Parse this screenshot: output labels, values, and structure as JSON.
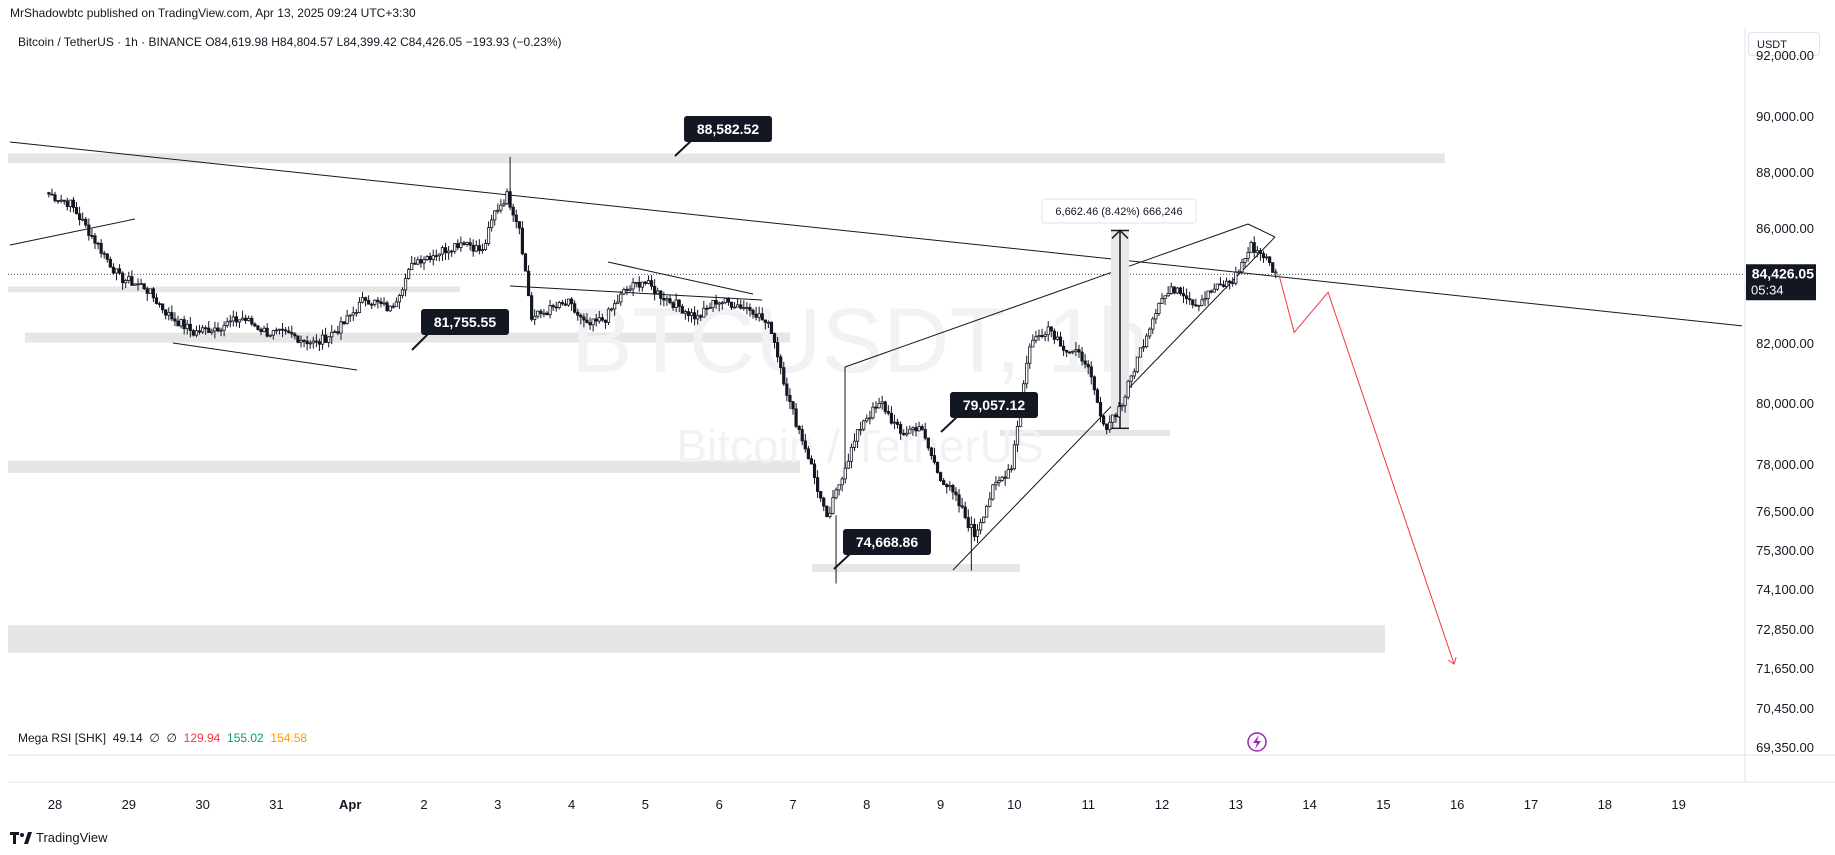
{
  "publisher": "MrShadowbtc published on TradingView.com, Apr 13, 2025 09:24 UTC+3:30",
  "header": {
    "symbol": "Bitcoin / TetherUS · 1h · BINANCE",
    "open": "O84,619.98",
    "high": "H84,804.57",
    "low": "L84,399.42",
    "close": "C84,426.05",
    "change": "−193.93 (−0.23%)"
  },
  "currency_button": "USDT",
  "watermark": {
    "symbol": "BTCUSDT, 1h",
    "name": "Bitcoin / TetherUS"
  },
  "indicator": {
    "name": "Mega RSI [SHK]",
    "v1": "49.14",
    "v2": "∅",
    "v3": "∅",
    "v4": "129.94",
    "v5": "155.02",
    "v6": "154.58",
    "colors": {
      "v4": "#f23645",
      "v5": "#089981",
      "v6": "#ff9800"
    }
  },
  "footer": {
    "brand": "TradingView",
    "icon": "tradingview-logo-icon"
  },
  "colors": {
    "bull": "#131722",
    "projection": "#f23645",
    "zone": "#e6e6e6",
    "last_price_bg": "#131722"
  },
  "chart_data": {
    "type": "candlestick",
    "interval": "1h",
    "x_ticks": [
      "28",
      "29",
      "30",
      "31",
      "Apr",
      "2",
      "3",
      "4",
      "5",
      "6",
      "7",
      "8",
      "9",
      "10",
      "11",
      "12",
      "13",
      "14",
      "15",
      "16",
      "17",
      "18",
      "19"
    ],
    "y_ticks": [
      "92,000.00",
      "90,000.00",
      "88,000.00",
      "86,000.00",
      "82,000.00",
      "80,000.00",
      "78,000.00",
      "76,500.00",
      "75,300.00",
      "74,100.00",
      "72,850.00",
      "71,650.00",
      "70,450.00",
      "69,350.00"
    ],
    "last_price": {
      "value": "84,426.05",
      "countdown": "05:34"
    },
    "price_labels": [
      "88,582.52",
      "81,755.55",
      "79,057.12",
      "74,668.86"
    ],
    "measure_label": "6,662.46 (8.42%) 666,246",
    "close_path": [
      [
        "Mar 27 22:00",
        87300
      ],
      [
        "Mar 28 06:00",
        86900
      ],
      [
        "Mar 28 14:00",
        85600
      ],
      [
        "Mar 28 22:00",
        84300
      ],
      [
        "Mar 29 06:00",
        84000
      ],
      [
        "Mar 29 14:00",
        83000
      ],
      [
        "Mar 29 22:00",
        82400
      ],
      [
        "Mar 30 06:00",
        82600
      ],
      [
        "Mar 30 14:00",
        82900
      ],
      [
        "Mar 30 22:00",
        82400
      ],
      [
        "Mar 31 06:00",
        82300
      ],
      [
        "Mar 31 14:00",
        82000
      ],
      [
        "Mar 31 22:00",
        82600
      ],
      [
        "Apr 1 06:00",
        83600
      ],
      [
        "Apr 1 14:00",
        83200
      ],
      [
        "Apr 1 22:00",
        84900
      ],
      [
        "Apr 2 06:00",
        85200
      ],
      [
        "Apr 2 14:00",
        85600
      ],
      [
        "Apr 2 20:00",
        85200
      ],
      [
        "Apr 3 00:00",
        86600
      ],
      [
        "Apr 3 04:00",
        87200
      ],
      [
        "Apr 3 08:00",
        86100
      ],
      [
        "Apr 3 12:00",
        82900
      ],
      [
        "Apr 3 18:00",
        83200
      ],
      [
        "Apr 4 00:00",
        83400
      ],
      [
        "Apr 4 06:00",
        82600
      ],
      [
        "Apr 4 12:00",
        82900
      ],
      [
        "Apr 4 18:00",
        83800
      ],
      [
        "Apr 5 00:00",
        84200
      ],
      [
        "Apr 5 06:00",
        83700
      ],
      [
        "Apr 5 12:00",
        83300
      ],
      [
        "Apr 5 18:00",
        82900
      ],
      [
        "Apr 6 00:00",
        83500
      ],
      [
        "Apr 6 06:00",
        83400
      ],
      [
        "Apr 6 12:00",
        83200
      ],
      [
        "Apr 6 18:00",
        82500
      ],
      [
        "Apr 7 00:00",
        80000
      ],
      [
        "Apr 7 06:00",
        78300
      ],
      [
        "Apr 7 12:00",
        76200
      ],
      [
        "Apr 7 18:00",
        78000
      ],
      [
        "Apr 8 00:00",
        79500
      ],
      [
        "Apr 8 06:00",
        80000
      ],
      [
        "Apr 8 12:00",
        79000
      ],
      [
        "Apr 8 18:00",
        79300
      ],
      [
        "Apr 9 00:00",
        77800
      ],
      [
        "Apr 9 06:00",
        76900
      ],
      [
        "Apr 9 12:00",
        75800
      ],
      [
        "Apr 9 18:00",
        77200
      ],
      [
        "Apr 10 00:00",
        78000
      ],
      [
        "Apr 10 06:00",
        82000
      ],
      [
        "Apr 10 12:00",
        82600
      ],
      [
        "Apr 10 18:00",
        81800
      ],
      [
        "Apr 11 00:00",
        81500
      ],
      [
        "Apr 11 06:00",
        79200
      ],
      [
        "Apr 11 12:00",
        80000
      ],
      [
        "Apr 11 18:00",
        81800
      ],
      [
        "Apr 12 00:00",
        83500
      ],
      [
        "Apr 12 06:00",
        84000
      ],
      [
        "Apr 12 12:00",
        83400
      ],
      [
        "Apr 12 18:00",
        83900
      ],
      [
        "Apr 13 00:00",
        84200
      ],
      [
        "Apr 13 06:00",
        85400
      ],
      [
        "Apr 13 10:00",
        85100
      ],
      [
        "Apr 13 14:00",
        84426
      ]
    ],
    "projection": [
      [
        "Apr 13 14:00",
        84426
      ],
      [
        "Apr 13 19:00",
        82400
      ],
      [
        "Apr 14 06:00",
        83800
      ],
      [
        "Apr 15 23:00",
        71800
      ]
    ]
  }
}
